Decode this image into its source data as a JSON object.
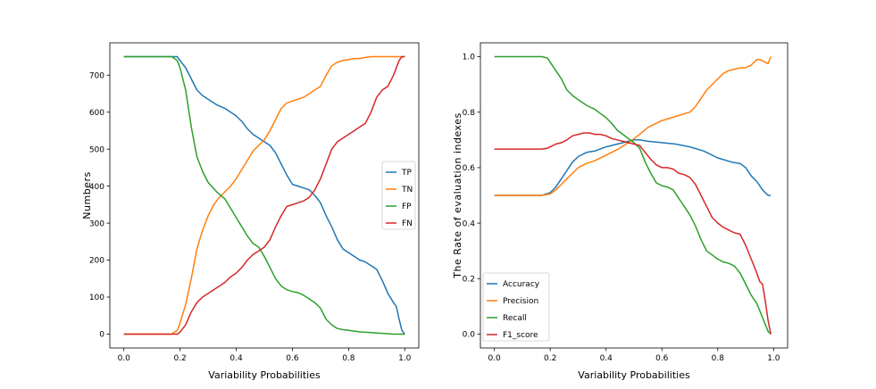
{
  "chart_data": [
    {
      "type": "line",
      "title": "",
      "xlabel": "Variability Probabilities",
      "ylabel": "Numbers",
      "xlim": [
        -0.05,
        1.05
      ],
      "ylim": [
        -37.5,
        787.5
      ],
      "xticks": [
        0.0,
        0.2,
        0.4,
        0.6,
        0.8,
        1.0
      ],
      "xtick_labels": [
        "0.0",
        "0.2",
        "0.4",
        "0.6",
        "0.8",
        "1.0"
      ],
      "yticks": [
        0,
        100,
        200,
        300,
        400,
        500,
        600,
        700
      ],
      "ytick_labels": [
        "0",
        "100",
        "200",
        "300",
        "400",
        "500",
        "600",
        "700"
      ],
      "legend_position": "center-right",
      "series": [
        {
          "name": "TP",
          "color": "#1f77b4",
          "x": [
            0,
            0.17,
            0.19,
            0.2,
            0.22,
            0.24,
            0.26,
            0.28,
            0.3,
            0.33,
            0.36,
            0.38,
            0.4,
            0.42,
            0.44,
            0.46,
            0.48,
            0.5,
            0.52,
            0.54,
            0.56,
            0.58,
            0.6,
            0.62,
            0.64,
            0.66,
            0.68,
            0.7,
            0.72,
            0.74,
            0.76,
            0.78,
            0.8,
            0.82,
            0.84,
            0.86,
            0.88,
            0.9,
            0.92,
            0.94,
            0.96,
            0.97,
            0.98,
            0.99,
            1.0
          ],
          "values": [
            750,
            750,
            750,
            740,
            720,
            690,
            660,
            645,
            635,
            620,
            610,
            600,
            590,
            575,
            555,
            540,
            530,
            520,
            510,
            490,
            460,
            430,
            405,
            400,
            395,
            390,
            375,
            355,
            320,
            290,
            255,
            230,
            220,
            210,
            200,
            195,
            185,
            175,
            145,
            110,
            85,
            75,
            40,
            10,
            0
          ]
        },
        {
          "name": "TN",
          "color": "#ff7f0e",
          "x": [
            0,
            0.17,
            0.19,
            0.2,
            0.22,
            0.24,
            0.26,
            0.28,
            0.3,
            0.32,
            0.34,
            0.36,
            0.38,
            0.4,
            0.42,
            0.44,
            0.46,
            0.48,
            0.5,
            0.52,
            0.54,
            0.56,
            0.58,
            0.6,
            0.62,
            0.64,
            0.66,
            0.68,
            0.7,
            0.72,
            0.74,
            0.76,
            0.78,
            0.8,
            0.82,
            0.84,
            0.86,
            0.88,
            0.9,
            0.92,
            0.94,
            0.96,
            0.98,
            1.0
          ],
          "values": [
            0,
            0,
            10,
            30,
            80,
            150,
            230,
            280,
            320,
            350,
            370,
            385,
            400,
            420,
            445,
            470,
            495,
            510,
            525,
            550,
            580,
            610,
            625,
            630,
            635,
            640,
            650,
            660,
            670,
            700,
            725,
            735,
            740,
            742,
            745,
            745,
            748,
            750,
            750,
            750,
            750,
            750,
            750,
            750
          ]
        },
        {
          "name": "FP",
          "color": "#2ca02c",
          "x": [
            0,
            0.17,
            0.19,
            0.2,
            0.22,
            0.24,
            0.26,
            0.28,
            0.3,
            0.33,
            0.36,
            0.38,
            0.4,
            0.42,
            0.44,
            0.46,
            0.48,
            0.5,
            0.52,
            0.54,
            0.56,
            0.58,
            0.6,
            0.62,
            0.64,
            0.66,
            0.68,
            0.7,
            0.72,
            0.74,
            0.76,
            0.78,
            0.8,
            0.82,
            0.84,
            0.86,
            0.88,
            0.9,
            0.92,
            0.94,
            0.96,
            0.98,
            1.0
          ],
          "values": [
            750,
            750,
            740,
            720,
            660,
            560,
            480,
            440,
            410,
            385,
            365,
            340,
            315,
            290,
            265,
            245,
            235,
            210,
            180,
            150,
            130,
            120,
            115,
            112,
            105,
            95,
            85,
            70,
            40,
            25,
            15,
            12,
            10,
            8,
            6,
            5,
            4,
            3,
            2,
            1,
            0,
            0,
            0
          ]
        },
        {
          "name": "FN",
          "color": "#d62728",
          "x": [
            0,
            0.17,
            0.19,
            0.2,
            0.22,
            0.24,
            0.26,
            0.28,
            0.3,
            0.32,
            0.34,
            0.36,
            0.38,
            0.4,
            0.42,
            0.44,
            0.46,
            0.48,
            0.5,
            0.52,
            0.54,
            0.56,
            0.58,
            0.6,
            0.62,
            0.64,
            0.66,
            0.68,
            0.7,
            0.72,
            0.74,
            0.76,
            0.78,
            0.8,
            0.82,
            0.84,
            0.86,
            0.88,
            0.9,
            0.92,
            0.94,
            0.96,
            0.98,
            0.99,
            1.0
          ],
          "values": [
            0,
            0,
            0,
            5,
            25,
            60,
            85,
            100,
            110,
            120,
            130,
            140,
            155,
            165,
            180,
            200,
            215,
            225,
            235,
            255,
            290,
            320,
            345,
            350,
            355,
            360,
            370,
            390,
            420,
            460,
            500,
            520,
            530,
            540,
            550,
            560,
            570,
            600,
            640,
            660,
            670,
            700,
            740,
            750,
            750
          ]
        }
      ]
    },
    {
      "type": "line",
      "title": "",
      "xlabel": "Variability Probabilities",
      "ylabel": "The Rate of evaluation indexes",
      "xlim": [
        -0.05,
        1.05
      ],
      "ylim": [
        -0.05,
        1.05
      ],
      "xticks": [
        0.0,
        0.2,
        0.4,
        0.6,
        0.8,
        1.0
      ],
      "xtick_labels": [
        "0.0",
        "0.2",
        "0.4",
        "0.6",
        "0.8",
        "1.0"
      ],
      "yticks": [
        0.0,
        0.2,
        0.4,
        0.6,
        0.8,
        1.0
      ],
      "ytick_labels": [
        "0.0",
        "0.2",
        "0.4",
        "0.6",
        "0.8",
        "1.0"
      ],
      "legend_position": "lower-left",
      "series": [
        {
          "name": "Accuracy",
          "color": "#1f77b4",
          "x": [
            0,
            0.17,
            0.2,
            0.22,
            0.24,
            0.26,
            0.28,
            0.3,
            0.33,
            0.36,
            0.4,
            0.44,
            0.48,
            0.5,
            0.52,
            0.55,
            0.6,
            0.65,
            0.7,
            0.75,
            0.8,
            0.85,
            0.88,
            0.9,
            0.92,
            0.94,
            0.96,
            0.98,
            0.99
          ],
          "values": [
            0.5,
            0.5,
            0.51,
            0.53,
            0.56,
            0.59,
            0.62,
            0.64,
            0.655,
            0.66,
            0.675,
            0.685,
            0.695,
            0.7,
            0.7,
            0.695,
            0.69,
            0.685,
            0.675,
            0.66,
            0.635,
            0.62,
            0.615,
            0.6,
            0.57,
            0.55,
            0.52,
            0.5,
            0.5
          ]
        },
        {
          "name": "Precision",
          "color": "#ff7f0e",
          "x": [
            0,
            0.17,
            0.2,
            0.22,
            0.24,
            0.26,
            0.28,
            0.3,
            0.33,
            0.36,
            0.4,
            0.44,
            0.48,
            0.5,
            0.52,
            0.55,
            0.58,
            0.6,
            0.65,
            0.7,
            0.72,
            0.74,
            0.76,
            0.78,
            0.8,
            0.82,
            0.84,
            0.86,
            0.88,
            0.9,
            0.92,
            0.94,
            0.95,
            0.96,
            0.97,
            0.98,
            0.99
          ],
          "values": [
            0.5,
            0.5,
            0.505,
            0.52,
            0.54,
            0.56,
            0.58,
            0.6,
            0.615,
            0.625,
            0.645,
            0.665,
            0.69,
            0.705,
            0.72,
            0.745,
            0.76,
            0.77,
            0.785,
            0.8,
            0.82,
            0.85,
            0.88,
            0.9,
            0.92,
            0.94,
            0.95,
            0.955,
            0.96,
            0.96,
            0.97,
            0.99,
            0.99,
            0.985,
            0.98,
            0.975,
            1.0
          ]
        },
        {
          "name": "Recall",
          "color": "#2ca02c",
          "x": [
            0,
            0.17,
            0.19,
            0.2,
            0.22,
            0.24,
            0.26,
            0.28,
            0.3,
            0.33,
            0.36,
            0.38,
            0.4,
            0.42,
            0.44,
            0.46,
            0.48,
            0.5,
            0.52,
            0.54,
            0.56,
            0.58,
            0.6,
            0.62,
            0.64,
            0.66,
            0.68,
            0.7,
            0.72,
            0.74,
            0.76,
            0.78,
            0.8,
            0.82,
            0.84,
            0.86,
            0.88,
            0.9,
            0.92,
            0.94,
            0.96,
            0.98,
            0.99
          ],
          "values": [
            1.0,
            1.0,
            0.995,
            0.98,
            0.95,
            0.92,
            0.88,
            0.86,
            0.845,
            0.825,
            0.81,
            0.795,
            0.78,
            0.76,
            0.735,
            0.72,
            0.705,
            0.69,
            0.67,
            0.62,
            0.58,
            0.545,
            0.535,
            0.53,
            0.52,
            0.49,
            0.46,
            0.43,
            0.39,
            0.34,
            0.3,
            0.285,
            0.27,
            0.26,
            0.255,
            0.245,
            0.22,
            0.18,
            0.14,
            0.11,
            0.06,
            0.01,
            0.0
          ]
        },
        {
          "name": "F1_score",
          "color": "#d62728",
          "x": [
            0,
            0.17,
            0.19,
            0.2,
            0.22,
            0.24,
            0.26,
            0.28,
            0.3,
            0.32,
            0.34,
            0.36,
            0.38,
            0.4,
            0.42,
            0.44,
            0.46,
            0.48,
            0.5,
            0.52,
            0.54,
            0.56,
            0.58,
            0.6,
            0.62,
            0.64,
            0.66,
            0.68,
            0.7,
            0.72,
            0.74,
            0.76,
            0.78,
            0.8,
            0.82,
            0.84,
            0.86,
            0.88,
            0.9,
            0.92,
            0.94,
            0.95,
            0.96,
            0.97,
            0.98,
            0.99
          ],
          "values": [
            0.667,
            0.667,
            0.67,
            0.675,
            0.685,
            0.69,
            0.7,
            0.715,
            0.72,
            0.725,
            0.725,
            0.72,
            0.72,
            0.715,
            0.705,
            0.7,
            0.695,
            0.69,
            0.685,
            0.68,
            0.655,
            0.63,
            0.61,
            0.6,
            0.6,
            0.595,
            0.58,
            0.575,
            0.565,
            0.54,
            0.5,
            0.46,
            0.42,
            0.4,
            0.385,
            0.375,
            0.365,
            0.36,
            0.32,
            0.27,
            0.22,
            0.19,
            0.18,
            0.12,
            0.05,
            0.0
          ]
        }
      ]
    }
  ]
}
